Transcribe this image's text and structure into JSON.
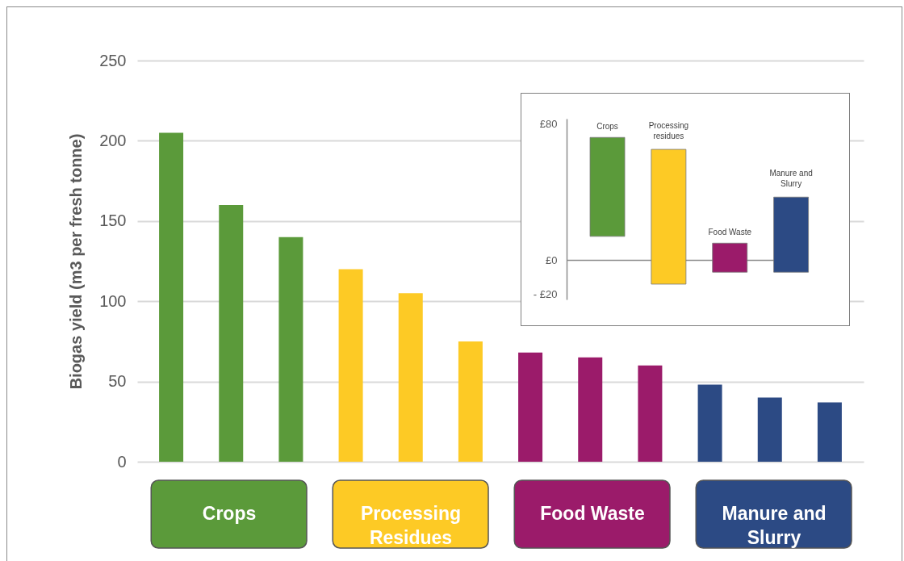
{
  "chart_data": [
    {
      "type": "bar",
      "ylabel": "Biogas yield (m3 per fresh tonne)",
      "categories": [
        null,
        null,
        null,
        null,
        null,
        null,
        null,
        null,
        null,
        null,
        null,
        null
      ],
      "ylim": [
        0,
        250
      ],
      "yticks": [
        0,
        50,
        100,
        150,
        200,
        250
      ],
      "grid": "y",
      "legend": "bottom",
      "series": [
        {
          "name": "Crops",
          "color": "#5b9a3a",
          "values": [
            205,
            160,
            140,
            null,
            null,
            null,
            null,
            null,
            null,
            null,
            null,
            null
          ]
        },
        {
          "name": "Processing Residues",
          "color": "#fdca25",
          "values": [
            null,
            null,
            null,
            120,
            105,
            75,
            null,
            null,
            null,
            null,
            null,
            null
          ]
        },
        {
          "name": "Food Waste",
          "color": "#9b1b6a",
          "values": [
            null,
            null,
            null,
            null,
            null,
            null,
            68,
            65,
            60,
            null,
            null,
            null
          ]
        },
        {
          "name": "Manure and Slurry",
          "color": "#2c4a84",
          "values": [
            null,
            null,
            null,
            null,
            null,
            null,
            null,
            null,
            null,
            48,
            40,
            37
          ]
        }
      ]
    },
    {
      "type": "bar",
      "categories": [
        "Crops",
        "Processing residues",
        "Food Waste",
        "Manure and Slurry"
      ],
      "values": [
        58,
        79,
        17,
        44
      ],
      "base": [
        14,
        -14,
        -7,
        -7
      ],
      "colors": [
        "#5b9a3a",
        "#fdca25",
        "#9b1b6a",
        "#2c4a84"
      ],
      "ylim": [
        -23,
        83
      ],
      "yticks": [
        {
          "value": 80,
          "label": "£80"
        },
        {
          "value": 0,
          "label": "£0"
        },
        {
          "value": -20,
          "label": "- £20"
        }
      ],
      "ref_lines": [
        {
          "axis": "y",
          "value": 0,
          "color": "#8c8c8c"
        }
      ]
    }
  ]
}
